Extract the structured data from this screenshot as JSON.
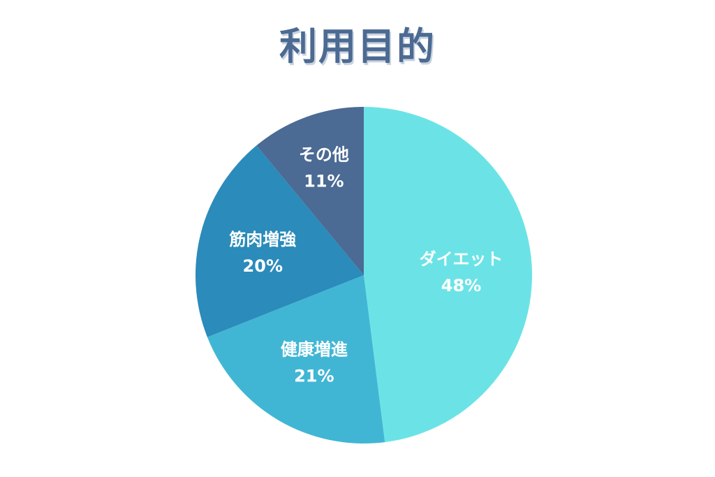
{
  "chart_data": {
    "type": "pie",
    "title": "利用目的",
    "start": "top",
    "direction": "clockwise",
    "slices": [
      {
        "label": "ダイエット",
        "value": 48,
        "value_label": "48%",
        "color": "#6be3e6"
      },
      {
        "label": "健康増進",
        "value": 21,
        "value_label": "21%",
        "color": "#41b6d4"
      },
      {
        "label": "筋肉増強",
        "value": 20,
        "value_label": "20%",
        "color": "#2b8bba"
      },
      {
        "label": "その他",
        "value": 11,
        "value_label": "11%",
        "color": "#4b6a94"
      }
    ]
  }
}
